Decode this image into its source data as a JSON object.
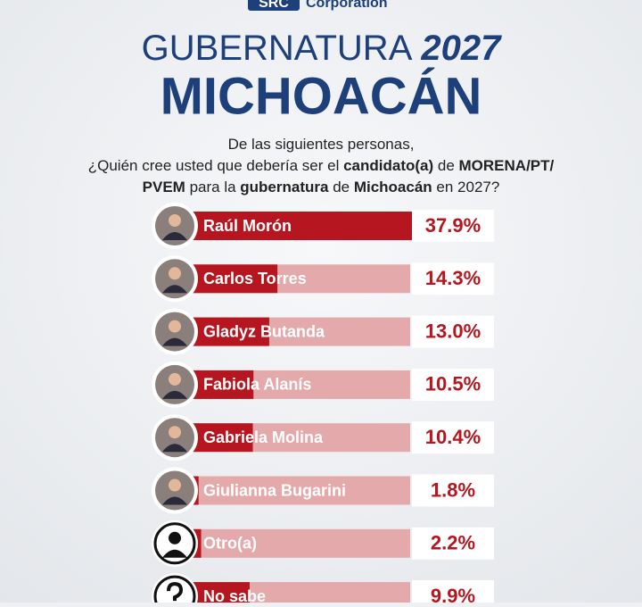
{
  "header": {
    "logo": "SRC",
    "company": "Corporation"
  },
  "chart_data": {
    "type": "bar",
    "orientation": "horizontal",
    "title": "GUBERNATURA",
    "title_year": "2027",
    "subtitle": "MICHOACÁN",
    "question": [
      [
        {
          "text": "De las siguientes personas,",
          "bold": false
        }
      ],
      [
        {
          "text": "¿Quién cree usted que debería ser el ",
          "bold": false
        },
        {
          "text": "candidato(a)",
          "bold": true
        },
        {
          "text": " de ",
          "bold": false
        },
        {
          "text": "MORENA/PT/",
          "bold": true
        }
      ],
      [
        {
          "text": "PVEM",
          "bold": true
        },
        {
          "text": " para la ",
          "bold": false
        },
        {
          "text": "gubernatura",
          "bold": true
        },
        {
          "text": " de ",
          "bold": false
        },
        {
          "text": "Michoacán",
          "bold": true
        },
        {
          "text": " en 2027?",
          "bold": false
        }
      ]
    ],
    "categories": [
      "Raúl Morón",
      "Carlos Torres",
      "Gladyz Butanda",
      "Fabiola Alanís",
      "Gabriela Molina",
      "Giulianna Bugarini",
      "Otro(a)",
      "No sabe"
    ],
    "values": [
      37.9,
      14.3,
      13.0,
      10.5,
      10.4,
      1.8,
      2.2,
      9.9
    ],
    "value_labels": [
      "37.9%",
      "14.3%",
      "13.0%",
      "10.5%",
      "10.4%",
      "1.8%",
      "2.2%",
      "9.9%"
    ],
    "color": "#b5161f",
    "track_color": "#e4a9aa"
  }
}
